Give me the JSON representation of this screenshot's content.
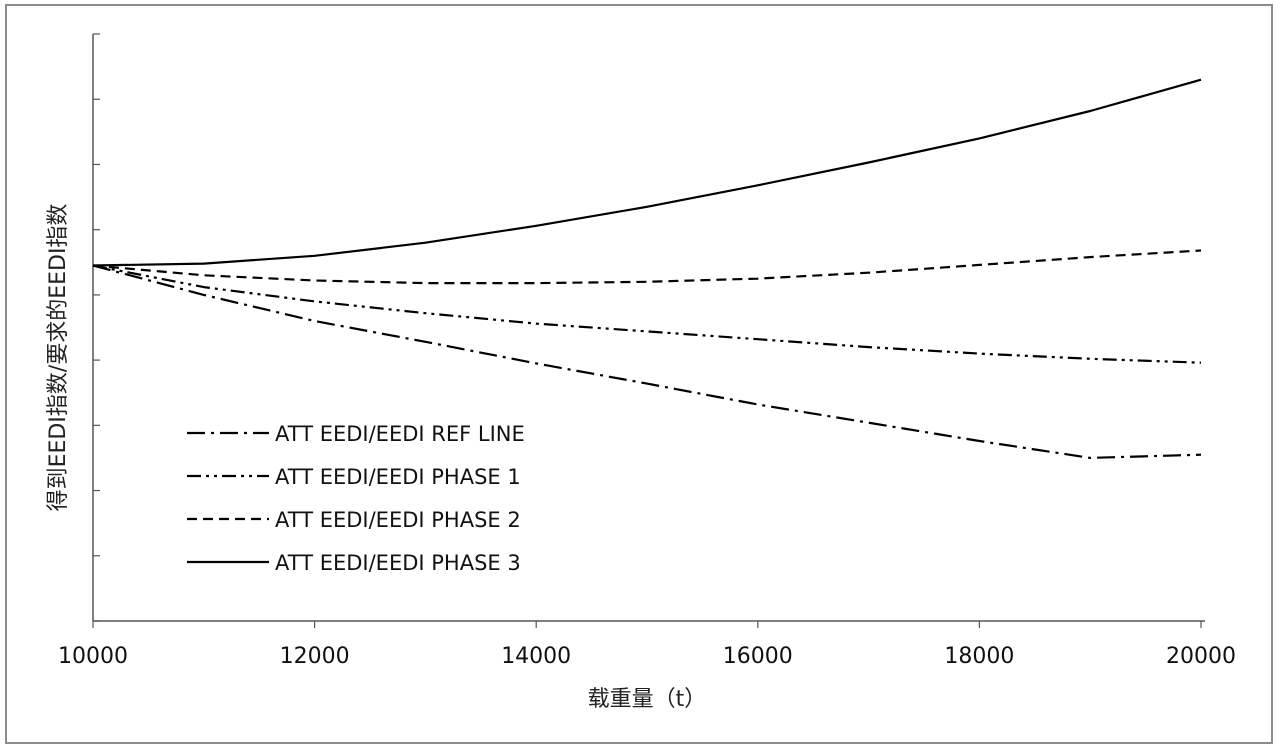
{
  "chart_data": {
    "type": "line",
    "title": "",
    "xlabel": "载重量（t）",
    "ylabel": "得到EEDI指数/要求的EEDI指数",
    "xlim": [
      10000,
      20000
    ],
    "ylim": [
      0,
      9
    ],
    "x_ticks": [
      10000,
      12000,
      14000,
      16000,
      18000,
      20000
    ],
    "y_tick_count": 9,
    "y_tick_labels_shown": false,
    "grid": false,
    "legend_position": "lower-left",
    "series": [
      {
        "name": "ATT EEDI/EEDI REF LINE",
        "dash": "dash-dot",
        "x": [
          10000,
          11000,
          12000,
          13000,
          14000,
          15000,
          16000,
          17000,
          18000,
          19000,
          20000
        ],
        "y": [
          5.45,
          5.0,
          4.6,
          4.28,
          3.95,
          3.64,
          3.32,
          3.04,
          2.76,
          2.5,
          2.55
        ]
      },
      {
        "name": "ATT EEDI/EEDI PHASE 1",
        "dash": "dash-dot-dot",
        "x": [
          10000,
          11000,
          12000,
          13000,
          14000,
          15000,
          16000,
          17000,
          18000,
          19000,
          20000
        ],
        "y": [
          5.45,
          5.12,
          4.9,
          4.72,
          4.56,
          4.44,
          4.32,
          4.2,
          4.1,
          4.02,
          3.96
        ]
      },
      {
        "name": "ATT EEDI/EEDI PHASE 2",
        "dash": "dashed",
        "x": [
          10000,
          11000,
          12000,
          13000,
          14000,
          15000,
          16000,
          17000,
          18000,
          19000,
          20000
        ],
        "y": [
          5.45,
          5.3,
          5.22,
          5.18,
          5.18,
          5.2,
          5.25,
          5.34,
          5.46,
          5.58,
          5.68
        ]
      },
      {
        "name": "ATT EEDI/EEDI PHASE 3",
        "dash": "solid",
        "x": [
          10000,
          11000,
          12000,
          13000,
          14000,
          15000,
          16000,
          17000,
          18000,
          19000,
          20000
        ],
        "y": [
          5.45,
          5.48,
          5.6,
          5.8,
          6.06,
          6.35,
          6.68,
          7.03,
          7.4,
          7.82,
          8.3
        ]
      }
    ]
  }
}
